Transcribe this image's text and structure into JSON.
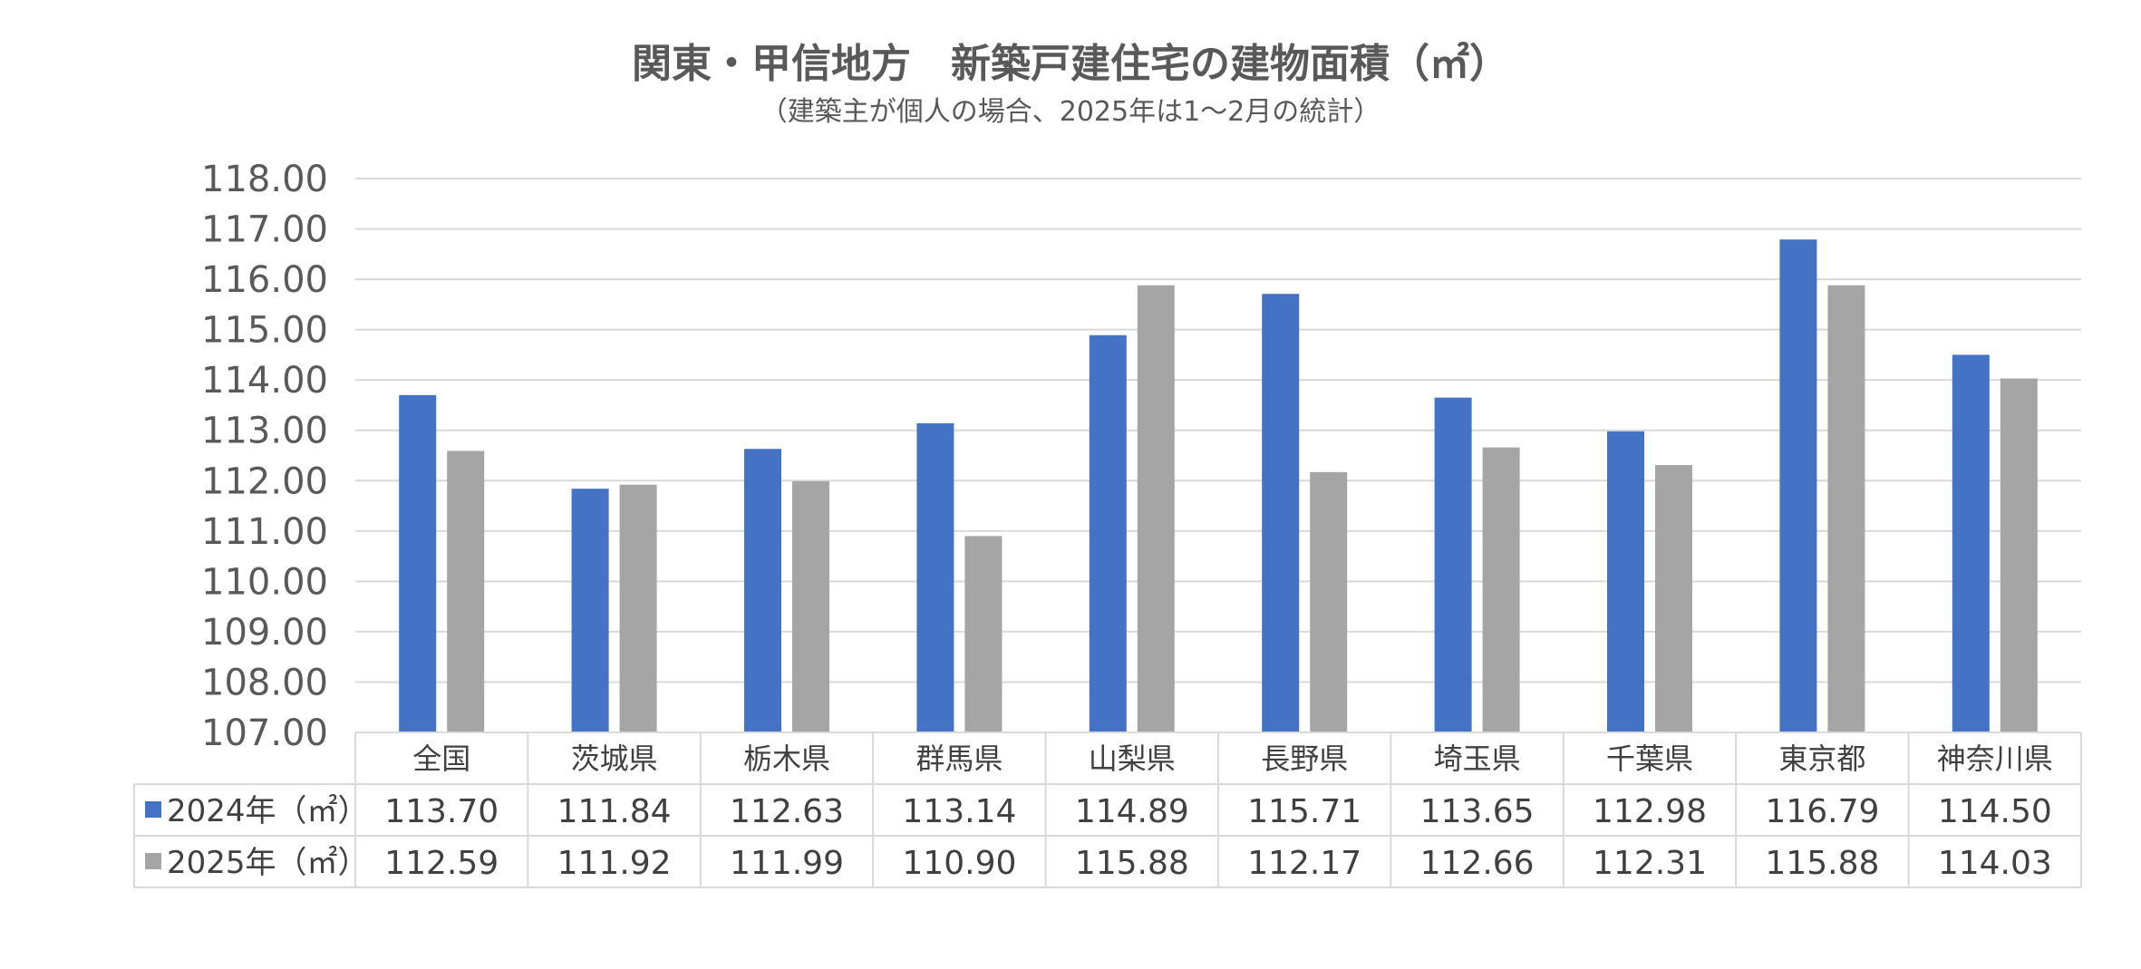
{
  "chart_data": {
    "type": "bar",
    "title": "関東・甲信地方　新築戸建住宅の建物面積（㎡）",
    "subtitle": "（建築主が個人の場合、2025年は1～2月の統計）",
    "categories": [
      "全国",
      "茨城県",
      "栃木県",
      "群馬県",
      "山梨県",
      "長野県",
      "埼玉県",
      "千葉県",
      "東京都",
      "神奈川県"
    ],
    "series": [
      {
        "name": "2024年（㎡）",
        "color": "#4472C4",
        "values": [
          113.7,
          111.84,
          112.63,
          113.14,
          114.89,
          115.71,
          113.65,
          112.98,
          116.79,
          114.5
        ],
        "labels": [
          "113.70",
          "111.84",
          "112.63",
          "113.14",
          "114.89",
          "115.71",
          "113.65",
          "112.98",
          "116.79",
          "114.50"
        ]
      },
      {
        "name": "2025年（㎡）",
        "color": "#A5A5A5",
        "values": [
          112.59,
          111.92,
          111.99,
          110.9,
          115.88,
          112.17,
          112.66,
          112.31,
          115.88,
          114.03
        ],
        "labels": [
          "112.59",
          "111.92",
          "111.99",
          "110.90",
          "115.88",
          "112.17",
          "112.66",
          "112.31",
          "115.88",
          "114.03"
        ]
      }
    ],
    "ylim": [
      107,
      118
    ],
    "yticks": [
      "107.00",
      "108.00",
      "109.00",
      "110.00",
      "111.00",
      "112.00",
      "113.00",
      "114.00",
      "115.00",
      "116.00",
      "117.00",
      "118.00"
    ],
    "grid": true,
    "data_table": true,
    "colors": {
      "grid": "#D9D9D9",
      "table_border": "#D9D9D9",
      "text": "#595959"
    }
  }
}
